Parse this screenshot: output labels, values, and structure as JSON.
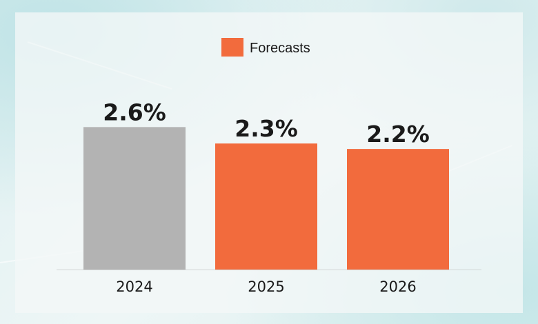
{
  "chart_data": {
    "type": "bar",
    "categories": [
      "2024",
      "2025",
      "2026"
    ],
    "values": [
      2.6,
      2.3,
      2.2
    ],
    "value_labels": [
      "2.6%",
      "2.3%",
      "2.2%"
    ],
    "is_forecast": [
      false,
      true,
      true
    ],
    "ylim": [
      0,
      3.9
    ],
    "title": "",
    "xlabel": "",
    "ylabel": "",
    "grid": false,
    "legend": {
      "position": "top-center",
      "entries": [
        {
          "label": "Forecasts",
          "color": "#f26b3d"
        }
      ]
    }
  },
  "colors": {
    "actual": "#b3b3b3",
    "forecast": "#f26b3d",
    "text": "#1a1a1a"
  }
}
